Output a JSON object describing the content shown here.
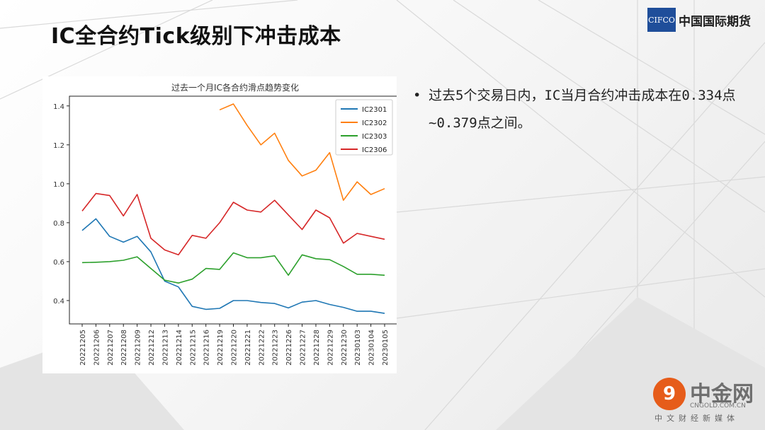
{
  "slide": {
    "title": "IC全合约Tick级别下冲击成本",
    "logo": {
      "mark": "CIFCO",
      "text": "中国国际期货"
    },
    "bullet": "过去5个交易日内，IC当月合约冲击成本在0.334点~0.379点之间。",
    "watermark": {
      "mark": "9",
      "name": "中金网",
      "domain": "CNGOLD.COM.CN",
      "slogan": "中文财经新媒体"
    }
  },
  "chart_data": {
    "type": "line",
    "title": "过去一个月IC各合约滑点趋势变化",
    "xlabel": "",
    "ylabel": "",
    "ylim": [
      0.28,
      1.45
    ],
    "yticks": [
      0.4,
      0.6,
      0.8,
      1.0,
      1.2,
      1.4
    ],
    "ytick_labels": [
      "0.4",
      "0.6",
      "0.8",
      "1.0",
      "1.2",
      "1.4"
    ],
    "categories": [
      "20221205",
      "20221206",
      "20221207",
      "20221208",
      "20221209",
      "20221212",
      "20221213",
      "20221214",
      "20221215",
      "20221216",
      "20221219",
      "20221220",
      "20221221",
      "20221222",
      "20221223",
      "20221226",
      "20221227",
      "20221228",
      "20221229",
      "20221230",
      "20230103",
      "20230104",
      "20230105"
    ],
    "legend_position": "top-right",
    "grid": false,
    "series": [
      {
        "name": "IC2301",
        "color": "#1f77b4",
        "values": [
          0.76,
          0.82,
          0.73,
          0.7,
          0.73,
          0.65,
          0.5,
          0.47,
          0.37,
          0.355,
          0.36,
          0.4,
          0.4,
          0.39,
          0.385,
          0.362,
          0.392,
          0.4,
          0.38,
          0.365,
          0.345,
          0.345,
          0.334
        ]
      },
      {
        "name": "IC2302",
        "color": "#ff7f0e",
        "values": [
          null,
          null,
          null,
          null,
          null,
          null,
          null,
          null,
          null,
          null,
          1.38,
          1.41,
          1.3,
          1.2,
          1.26,
          1.12,
          1.04,
          1.07,
          1.16,
          0.915,
          1.01,
          0.945,
          0.975
        ]
      },
      {
        "name": "IC2303",
        "color": "#2ca02c",
        "values": [
          0.595,
          0.597,
          0.6,
          0.607,
          0.625,
          0.565,
          0.505,
          0.49,
          0.51,
          0.565,
          0.56,
          0.645,
          0.62,
          0.62,
          0.63,
          0.53,
          0.635,
          0.615,
          0.61,
          0.575,
          0.535,
          0.535,
          0.53
        ]
      },
      {
        "name": "IC2306",
        "color": "#d62728",
        "values": [
          0.86,
          0.95,
          0.94,
          0.835,
          0.945,
          0.72,
          0.66,
          0.635,
          0.735,
          0.72,
          0.8,
          0.905,
          0.865,
          0.855,
          0.915,
          0.84,
          0.765,
          0.865,
          0.825,
          0.695,
          0.745,
          0.73,
          0.715
        ]
      }
    ]
  }
}
